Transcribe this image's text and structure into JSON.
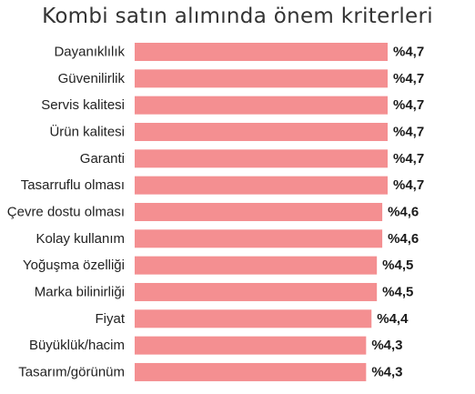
{
  "chart_data": {
    "type": "bar",
    "orientation": "horizontal",
    "title": "Kombi satın alımında önem kriterleri",
    "categories": [
      "Dayanıklılık",
      "Güvenilirlik",
      "Servis kalitesi",
      "Ürün kalitesi",
      "Garanti",
      "Tasarruflu olması",
      "Çevre dostu olması",
      "Kolay kullanım",
      "Yoğuşma özelliği",
      "Marka bilinirliği",
      "Fiyat",
      "Büyüklük/hacim",
      "Tasarım/görünüm"
    ],
    "values": [
      4.7,
      4.7,
      4.7,
      4.7,
      4.7,
      4.7,
      4.6,
      4.6,
      4.5,
      4.5,
      4.4,
      4.3,
      4.3
    ],
    "value_labels": [
      "%4,7",
      "%4,7",
      "%4,7",
      "%4,7",
      "%4,7",
      "%4,7",
      "%4,6",
      "%4,6",
      "%4,5",
      "%4,5",
      "%4,4",
      "%4,3",
      "%4,3"
    ],
    "xlim": [
      0,
      4.7
    ],
    "grid": false,
    "bar_color": "#f48f91",
    "text_color": "#222222"
  }
}
